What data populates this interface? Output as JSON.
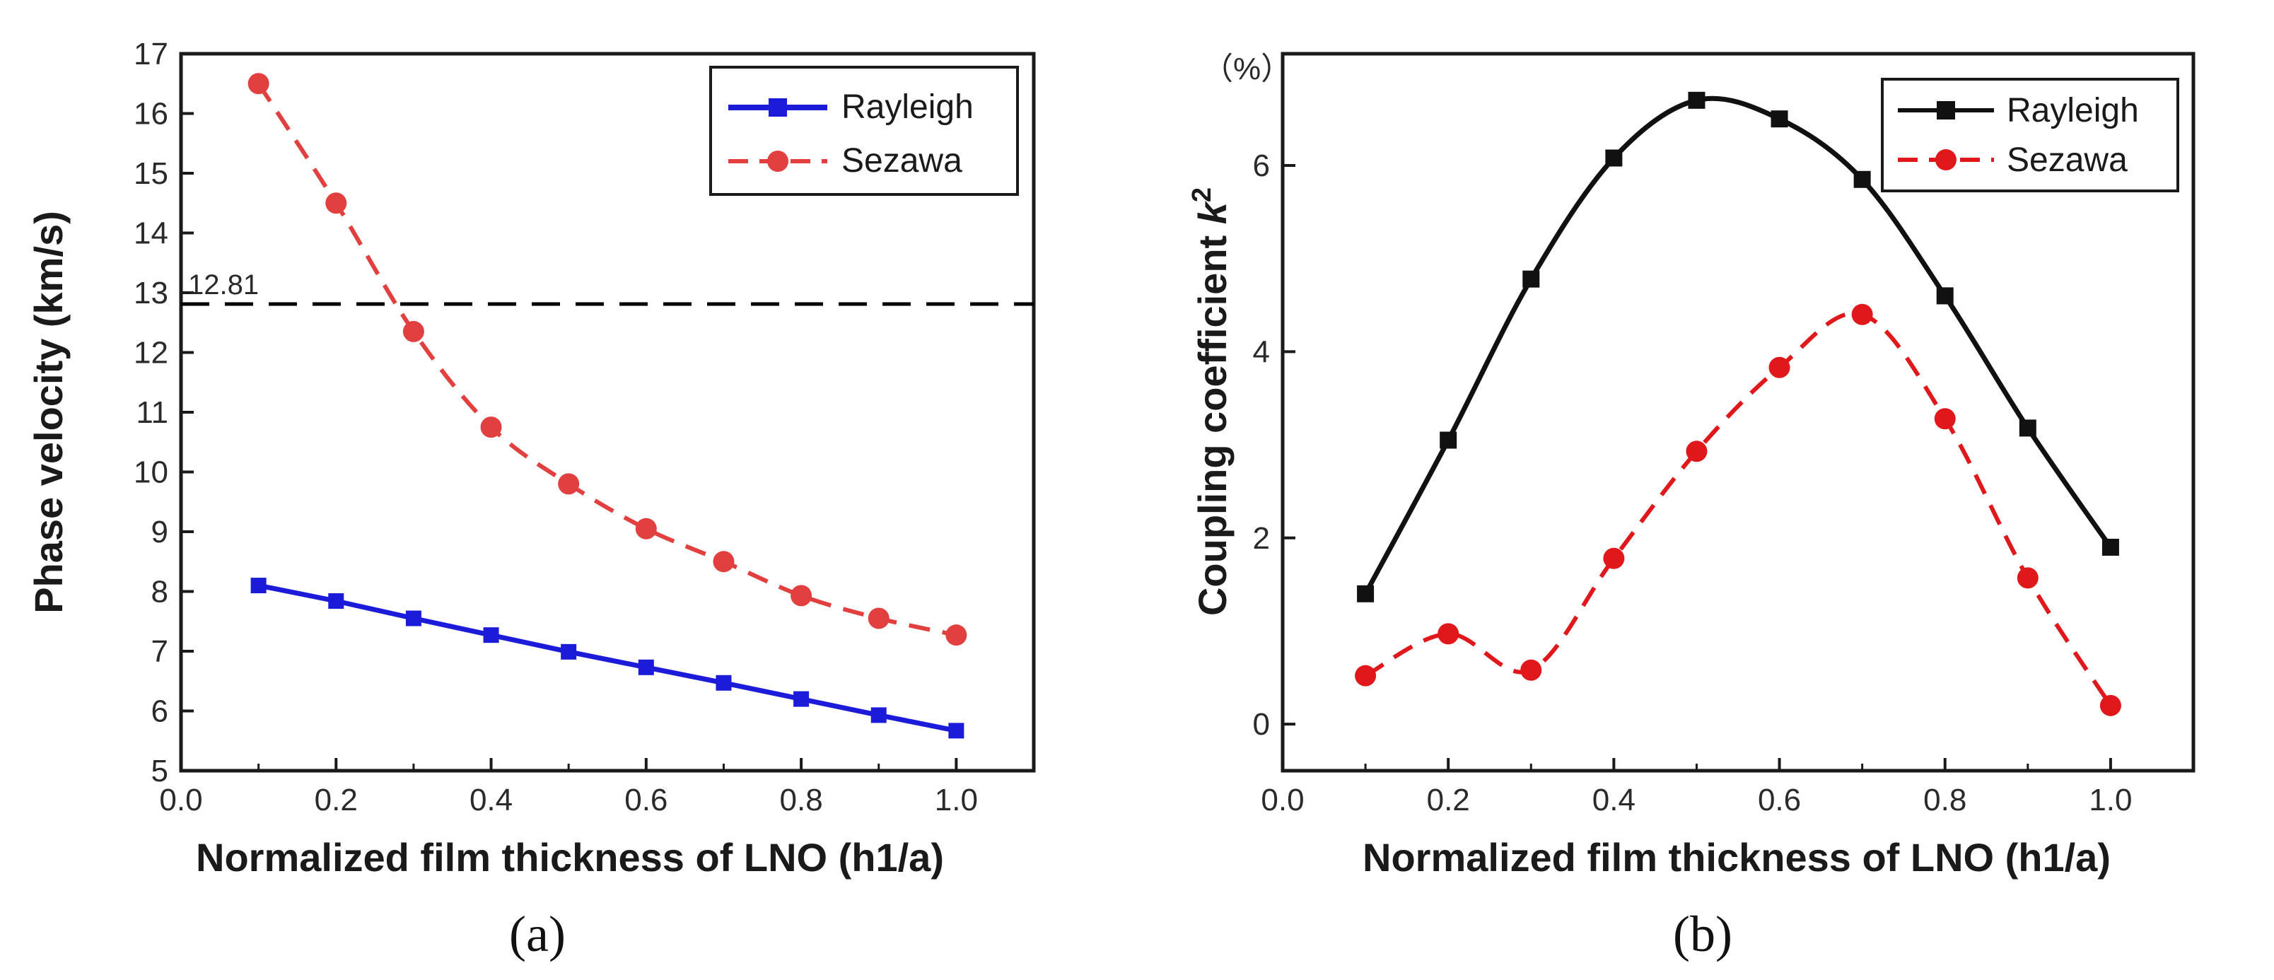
{
  "chart_data": [
    {
      "type": "line",
      "caption": "(a)",
      "title": "",
      "xlabel": "Normalized film thickness of LNO (h1/a)",
      "ylabel": "Phase velocity (km/s)",
      "xlim": [
        0.0,
        1.1
      ],
      "ylim": [
        5,
        17
      ],
      "xticks": [
        0.0,
        0.2,
        0.4,
        0.6,
        0.8,
        1.0
      ],
      "xtick_labels": [
        "0.0",
        "0.2",
        "0.4",
        "0.6",
        "0.8",
        "1.0"
      ],
      "yticks": [
        5,
        6,
        7,
        8,
        9,
        10,
        11,
        12,
        13,
        14,
        15,
        16,
        17
      ],
      "ytick_labels": [
        "5",
        "6",
        "7",
        "8",
        "9",
        "10",
        "11",
        "12",
        "13",
        "14",
        "15",
        "16",
        "17"
      ],
      "grid": false,
      "legend_position": "top-right",
      "reference_line": {
        "y": 12.81,
        "label": "12.81",
        "color": "#000000",
        "style": "dashed"
      },
      "series": [
        {
          "name": "Rayleigh",
          "color": "#1b1bd9",
          "line_style": "solid",
          "marker": "square",
          "x": [
            0.1,
            0.2,
            0.3,
            0.4,
            0.5,
            0.6,
            0.7,
            0.8,
            0.9,
            1.0
          ],
          "values": [
            8.1,
            7.84,
            7.55,
            7.27,
            6.99,
            6.73,
            6.47,
            6.2,
            5.93,
            5.67
          ]
        },
        {
          "name": "Sezawa",
          "color": "#e23f3f",
          "line_style": "dashed",
          "marker": "circle",
          "x": [
            0.1,
            0.2,
            0.3,
            0.4,
            0.5,
            0.6,
            0.7,
            0.8,
            0.9,
            1.0
          ],
          "values": [
            16.5,
            14.5,
            12.35,
            10.75,
            9.8,
            9.05,
            8.5,
            7.93,
            7.55,
            7.27
          ]
        }
      ]
    },
    {
      "type": "line",
      "caption": "(b)",
      "title": "",
      "xlabel": "Normalized film thickness of LNO (h1/a)",
      "ylabel_main": "Coupling coefficient ",
      "ylabel_symbol": "k",
      "ylabel_superscript": "2",
      "unit_label": "（%）",
      "xlim": [
        0.0,
        1.1
      ],
      "ylim": [
        -0.5,
        7.2
      ],
      "xticks": [
        0.0,
        0.2,
        0.4,
        0.6,
        0.8,
        1.0
      ],
      "xtick_labels": [
        "0.0",
        "0.2",
        "0.4",
        "0.6",
        "0.8",
        "1.0"
      ],
      "yticks": [
        0,
        2,
        4,
        6
      ],
      "ytick_labels": [
        "0",
        "2",
        "4",
        "6"
      ],
      "grid": false,
      "legend_position": "top-right",
      "series": [
        {
          "name": "Rayleigh",
          "color": "#111111",
          "line_style": "solid",
          "marker": "square",
          "x": [
            0.1,
            0.2,
            0.3,
            0.4,
            0.5,
            0.6,
            0.7,
            0.8,
            0.9,
            1.0
          ],
          "values": [
            1.4,
            3.05,
            4.78,
            6.08,
            6.7,
            6.5,
            5.85,
            4.6,
            3.18,
            1.9
          ]
        },
        {
          "name": "Sezawa",
          "color": "#e0181c",
          "line_style": "dashed",
          "marker": "circle",
          "x": [
            0.1,
            0.2,
            0.3,
            0.4,
            0.5,
            0.6,
            0.7,
            0.8,
            0.9,
            1.0
          ],
          "values": [
            0.52,
            0.97,
            0.58,
            1.78,
            2.93,
            3.83,
            4.4,
            3.28,
            1.57,
            0.2
          ]
        }
      ]
    }
  ]
}
